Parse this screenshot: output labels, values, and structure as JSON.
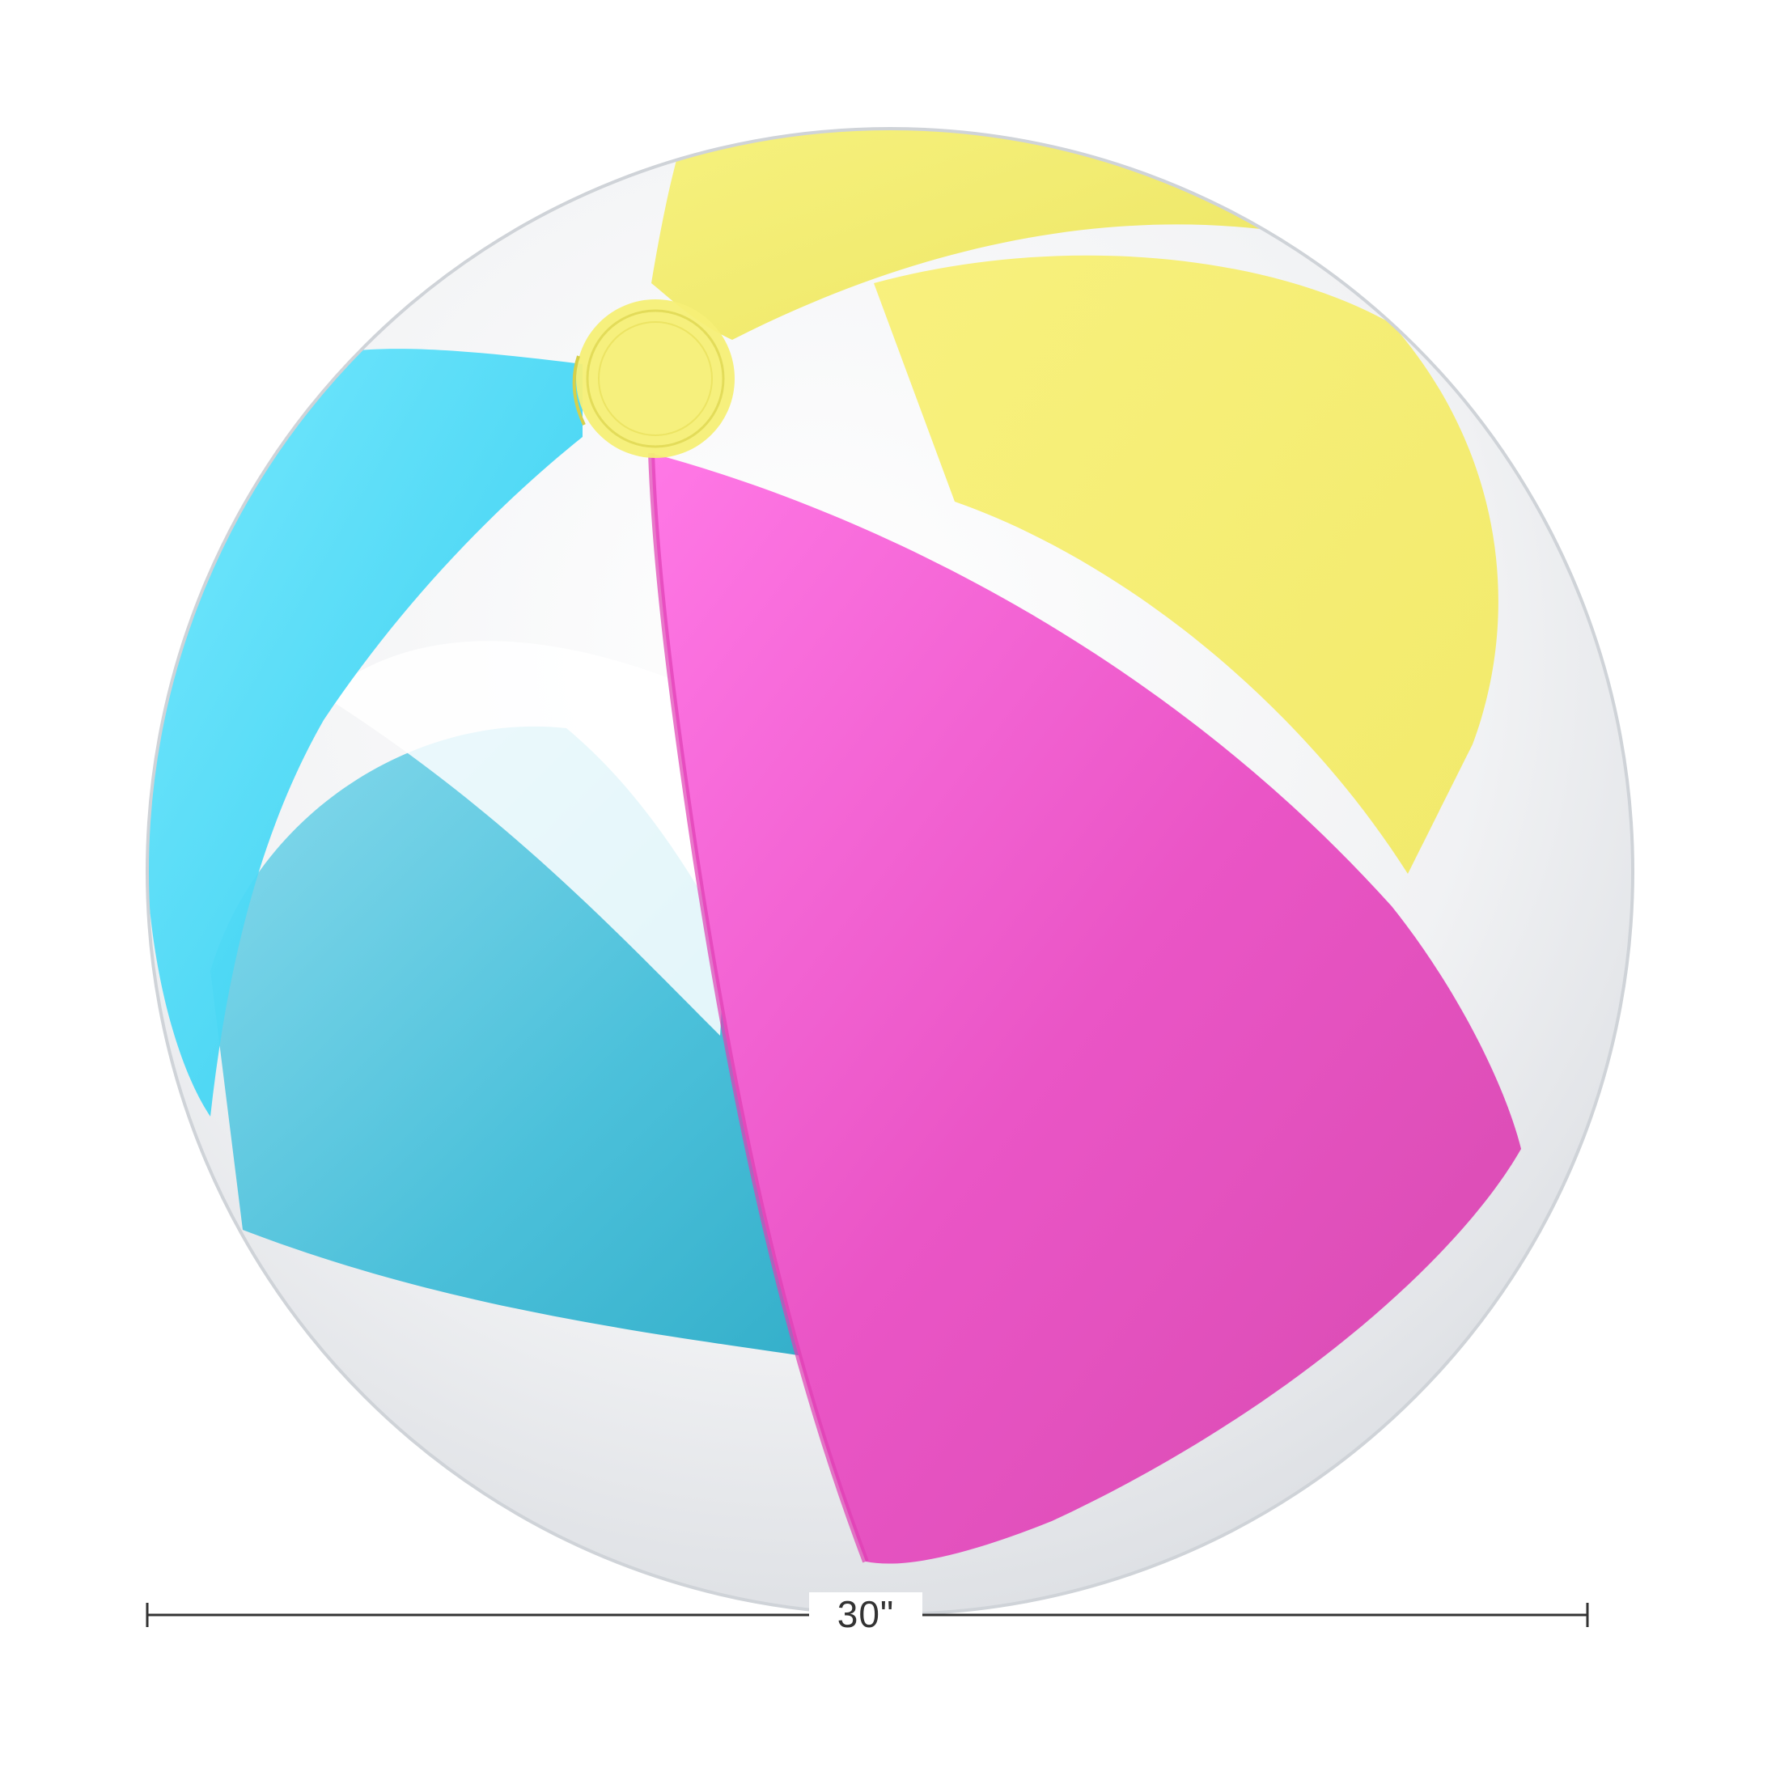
{
  "product": {
    "name": "Beach Ball"
  },
  "dimension": {
    "label": "30\"",
    "value": 30,
    "unit": "in"
  },
  "colors": {
    "yellow": "#f3ee5c",
    "pink": "#f05bcb",
    "cyan": "#3fd6f5",
    "clear": "#eef0f2",
    "dimension_line": "#333333"
  }
}
